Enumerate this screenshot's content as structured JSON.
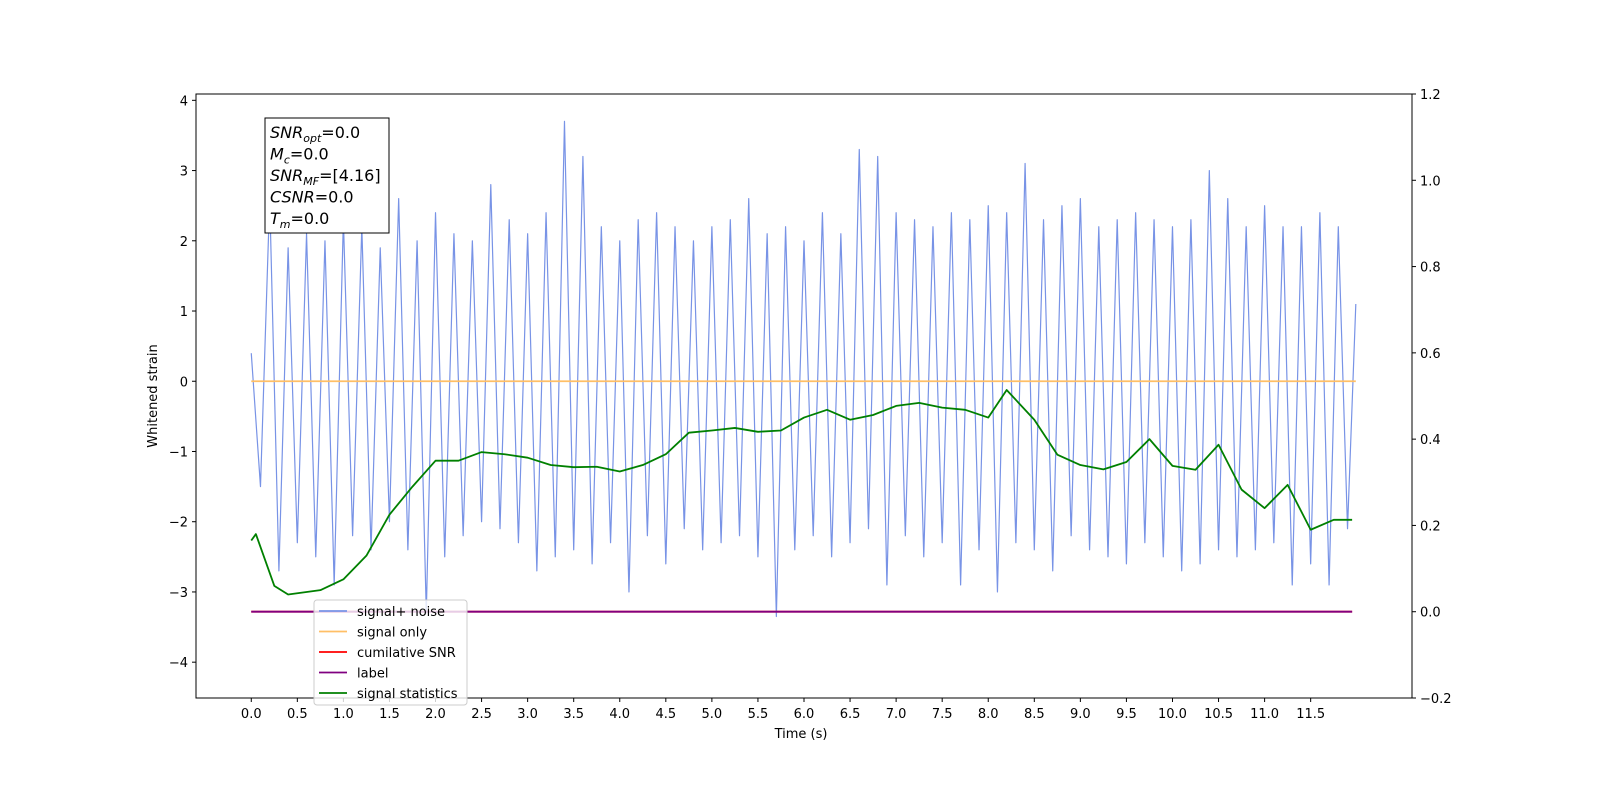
{
  "chart_data": {
    "type": "line",
    "xlabel": "Time (s)",
    "ylabel": "Whitened strain",
    "xlim": [
      -0.6,
      12.6
    ],
    "ylim": [
      -4.51,
      4.09
    ],
    "y2lim": [
      -0.2,
      1.2
    ],
    "xticks": [
      {
        "value": 0,
        "label": "0.0"
      },
      {
        "value": 0.5,
        "label": "0.5"
      },
      {
        "value": 1,
        "label": "1.0"
      },
      {
        "value": 1.5,
        "label": "1.5"
      },
      {
        "value": 2,
        "label": "2.0"
      },
      {
        "value": 2.5,
        "label": "2.5"
      },
      {
        "value": 3,
        "label": "3.0"
      },
      {
        "value": 3.5,
        "label": "3.5"
      },
      {
        "value": 4,
        "label": "4.0"
      },
      {
        "value": 4.5,
        "label": "4.5"
      },
      {
        "value": 5,
        "label": "5.0"
      },
      {
        "value": 5.5,
        "label": "5.5"
      },
      {
        "value": 6,
        "label": "6.0"
      },
      {
        "value": 6.5,
        "label": "6.5"
      },
      {
        "value": 7,
        "label": "7.0"
      },
      {
        "value": 7.5,
        "label": "7.5"
      },
      {
        "value": 8,
        "label": "8.0"
      },
      {
        "value": 8.5,
        "label": "8.5"
      },
      {
        "value": 9,
        "label": "9.0"
      },
      {
        "value": 9.5,
        "label": "9.5"
      },
      {
        "value": 10,
        "label": "10.0"
      },
      {
        "value": 10.5,
        "label": "10.5"
      },
      {
        "value": 11,
        "label": "11.0"
      },
      {
        "value": 11.5,
        "label": "11.5"
      }
    ],
    "yticks": [
      {
        "value": -4,
        "label": "−4"
      },
      {
        "value": -3,
        "label": "−3"
      },
      {
        "value": -2,
        "label": "−2"
      },
      {
        "value": -1,
        "label": "−1"
      },
      0,
      1,
      2,
      3,
      4
    ],
    "y2ticks": [
      {
        "value": -0.2,
        "label": "−0.2"
      },
      {
        "value": 0,
        "label": "0.0"
      },
      {
        "value": 0.2,
        "label": "0.2"
      },
      {
        "value": 0.4,
        "label": "0.4"
      },
      {
        "value": 0.6,
        "label": "0.6"
      },
      {
        "value": 0.8,
        "label": "0.8"
      },
      {
        "value": 1.0,
        "label": "1.0"
      },
      {
        "value": 1.2,
        "label": "1.2"
      }
    ],
    "grid": false,
    "legend": "lower left",
    "annotation": [
      {
        "symbol": "SNR",
        "sub": "opt",
        "text": "=0.0"
      },
      {
        "symbol": "M",
        "sub": "c",
        "text": "=0.0"
      },
      {
        "symbol": "SNR",
        "sub": "MF",
        "text": "=[4.16]"
      },
      {
        "symbol": "CSNR",
        "text": "=0.0"
      },
      {
        "symbol": "T",
        "sub": "m",
        "text": "=0.0"
      }
    ],
    "series": [
      {
        "name": "signal+ noise",
        "color": "#7893e6",
        "axis": "y",
        "x": [
          0,
          0.1,
          0.2,
          0.3,
          0.4,
          0.5,
          0.6,
          0.7,
          0.8,
          0.9,
          1.0,
          1.1,
          1.2,
          1.3,
          1.4,
          1.5,
          1.6,
          1.7,
          1.8,
          1.9,
          2.0,
          2.1,
          2.2,
          2.3,
          2.4,
          2.5,
          2.6,
          2.7,
          2.8,
          2.9,
          3.0,
          3.1,
          3.2,
          3.3,
          3.4,
          3.5,
          3.6,
          3.7,
          3.8,
          3.9,
          4.0,
          4.1,
          4.2,
          4.3,
          4.4,
          4.5,
          4.6,
          4.7,
          4.8,
          4.9,
          5.0,
          5.1,
          5.2,
          5.3,
          5.4,
          5.5,
          5.6,
          5.7,
          5.8,
          5.9,
          6.0,
          6.1,
          6.2,
          6.3,
          6.4,
          6.5,
          6.6,
          6.7,
          6.8,
          6.9,
          7.0,
          7.1,
          7.2,
          7.3,
          7.4,
          7.5,
          7.6,
          7.7,
          7.8,
          7.9,
          8.0,
          8.1,
          8.2,
          8.3,
          8.4,
          8.5,
          8.6,
          8.7,
          8.8,
          8.9,
          9.0,
          9.1,
          9.2,
          9.3,
          9.4,
          9.5,
          9.6,
          9.7,
          9.8,
          9.9,
          10.0,
          10.1,
          10.2,
          10.3,
          10.4,
          10.5,
          10.6,
          10.7,
          10.8,
          10.9,
          11.0,
          11.1,
          11.2,
          11.3,
          11.4,
          11.5,
          11.6,
          11.7,
          11.8,
          11.9,
          11.99
        ],
        "values": [
          0.4,
          -1.5,
          2.6,
          -2.7,
          1.9,
          -2.3,
          2.1,
          -2.5,
          2.0,
          -2.9,
          2.3,
          -2.2,
          2.2,
          -2.4,
          1.9,
          -2.0,
          2.6,
          -2.4,
          2.0,
          -3.3,
          2.4,
          -2.5,
          2.1,
          -2.2,
          2.0,
          -2.0,
          2.8,
          -2.1,
          2.3,
          -2.3,
          2.1,
          -2.7,
          2.4,
          -2.5,
          3.7,
          -2.4,
          3.2,
          -2.6,
          2.2,
          -2.3,
          2.0,
          -3.0,
          2.3,
          -2.2,
          2.4,
          -2.6,
          2.2,
          -2.1,
          2.0,
          -2.4,
          2.2,
          -2.3,
          2.3,
          -2.2,
          2.6,
          -2.5,
          2.1,
          -3.35,
          2.2,
          -2.4,
          2.0,
          -2.2,
          2.4,
          -2.5,
          2.1,
          -2.3,
          3.3,
          -2.1,
          3.2,
          -2.9,
          2.4,
          -2.2,
          2.3,
          -2.5,
          2.2,
          -2.3,
          2.4,
          -2.9,
          2.3,
          -2.4,
          2.5,
          -3.0,
          2.4,
          -2.3,
          3.1,
          -2.4,
          2.3,
          -2.7,
          2.5,
          -2.2,
          2.6,
          -2.4,
          2.2,
          -2.5,
          2.3,
          -2.6,
          2.4,
          -2.3,
          2.3,
          -2.5,
          2.2,
          -2.7,
          2.3,
          -2.6,
          3.0,
          -2.4,
          2.6,
          -2.5,
          2.2,
          -2.4,
          2.5,
          -2.3,
          2.2,
          -2.9,
          2.2,
          -2.6,
          2.4,
          -2.9,
          2.2,
          -2.1,
          1.1
        ]
      },
      {
        "name": "signal only",
        "color": "#ffbf66",
        "axis": "y",
        "x": [
          0,
          11.99
        ],
        "values": [
          0,
          0
        ]
      },
      {
        "name": "cumilative SNR",
        "color": "#ff0000",
        "axis": "y2",
        "x": [
          0,
          11.95
        ],
        "values": [
          0,
          0
        ]
      },
      {
        "name": "label",
        "color": "#800080",
        "axis": "y2",
        "x": [
          0,
          11.95
        ],
        "values": [
          0,
          0
        ]
      },
      {
        "name": "signal statistics",
        "color": "#008000",
        "axis": "y2",
        "x": [
          0,
          0.05,
          0.25,
          0.4,
          0.75,
          1.0,
          1.25,
          1.5,
          1.75,
          2.0,
          2.25,
          2.5,
          2.75,
          3.0,
          3.25,
          3.5,
          3.75,
          4.0,
          4.25,
          4.5,
          4.75,
          5.0,
          5.25,
          5.5,
          5.75,
          6.0,
          6.25,
          6.5,
          6.75,
          7.0,
          7.25,
          7.5,
          7.75,
          8.0,
          8.2,
          8.5,
          8.75,
          9.0,
          9.25,
          9.5,
          9.75,
          10.0,
          10.25,
          10.5,
          10.75,
          11.0,
          11.25,
          11.5,
          11.75,
          11.95
        ],
        "values": [
          0.165,
          0.18,
          0.06,
          0.04,
          0.05,
          0.075,
          0.13,
          0.225,
          0.29,
          0.35,
          0.35,
          0.37,
          0.365,
          0.357,
          0.34,
          0.335,
          0.336,
          0.325,
          0.34,
          0.365,
          0.415,
          0.42,
          0.426,
          0.417,
          0.42,
          0.45,
          0.468,
          0.445,
          0.456,
          0.477,
          0.484,
          0.473,
          0.468,
          0.45,
          0.514,
          0.445,
          0.364,
          0.34,
          0.33,
          0.347,
          0.4,
          0.338,
          0.329,
          0.387,
          0.283,
          0.24,
          0.294,
          0.19,
          0.213,
          0.213
        ]
      }
    ]
  }
}
